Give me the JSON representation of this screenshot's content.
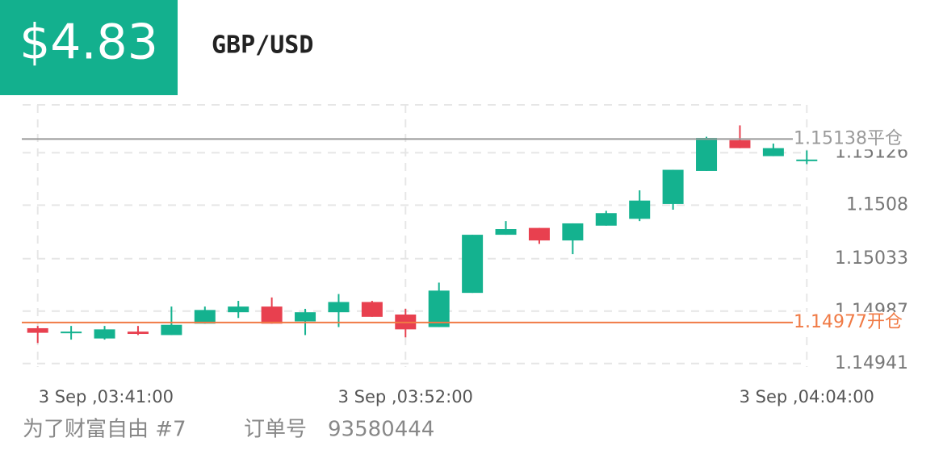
{
  "header": {
    "amount": "$4.83",
    "symbol": "GBP/USD"
  },
  "footer": {
    "account": "为了财富自由 #7",
    "order_label": "订单号",
    "order_number": "93580444"
  },
  "chart_data": {
    "type": "candlestick",
    "categories": [
      "3 Sep ,03:41:00",
      null,
      null,
      null,
      null,
      null,
      null,
      null,
      null,
      null,
      null,
      "3 Sep ,03:52:00",
      null,
      null,
      null,
      null,
      null,
      null,
      null,
      null,
      null,
      null,
      null,
      "3 Sep ,04:04:00"
    ],
    "open": [
      1.14972,
      1.14968,
      1.14963,
      1.14969,
      1.14966,
      1.14976,
      1.14986,
      1.14991,
      1.14978,
      1.14986,
      1.14995,
      1.14984,
      1.14973,
      1.15003,
      1.15054,
      1.1506,
      1.15049,
      1.15062,
      1.15068,
      1.15081,
      1.1511,
      1.15137,
      1.15123,
      1.15119
    ],
    "high": [
      1.14974,
      1.14974,
      1.14974,
      1.14974,
      1.14991,
      1.14991,
      1.14996,
      1.14999,
      1.14989,
      1.15002,
      1.14996,
      1.14989,
      1.15012,
      1.15054,
      1.15066,
      1.1506,
      1.15064,
      1.15075,
      1.15093,
      1.15111,
      1.1514,
      1.1515,
      1.15134,
      1.15128
    ],
    "low": [
      1.14959,
      1.14962,
      1.14962,
      1.14966,
      1.14966,
      1.14976,
      1.14981,
      1.14976,
      1.14966,
      1.14973,
      1.14982,
      1.14964,
      1.14973,
      1.15003,
      1.15054,
      1.15046,
      1.15037,
      1.15062,
      1.15066,
      1.15076,
      1.1511,
      1.1513,
      1.15123,
      1.15116
    ],
    "close": [
      1.14968,
      1.14969,
      1.14971,
      1.14967,
      1.14975,
      1.14988,
      1.14991,
      1.14976,
      1.14986,
      1.14995,
      1.14982,
      1.14971,
      1.15005,
      1.15054,
      1.15059,
      1.15049,
      1.15064,
      1.15073,
      1.15084,
      1.15111,
      1.15139,
      1.1513,
      1.1513,
      1.1512
    ],
    "up_color": "#14b28f",
    "down_color": "#e8404f",
    "ylim": [
      1.14938,
      1.15168
    ],
    "yticks": [
      1.14941,
      1.14987,
      1.15033,
      1.1508,
      1.15126
    ],
    "grid": true,
    "reference_lines": [
      {
        "value": 1.15138,
        "label": "1.15138平仓",
        "color": "#9a9a9a"
      },
      {
        "value": 1.14977,
        "label": "1.14977开仓",
        "color": "#f07a45"
      }
    ]
  }
}
